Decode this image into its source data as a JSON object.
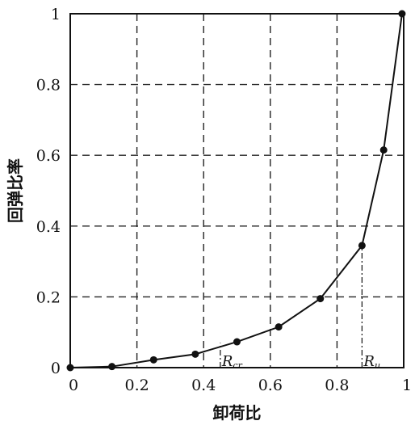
{
  "chart_data": {
    "type": "line",
    "xlabel": "卸荷比",
    "ylabel": "回弹比率",
    "xlim": [
      0,
      1
    ],
    "ylim": [
      0,
      1
    ],
    "xticks": [
      "0",
      "0.2",
      "0.4",
      "0.6",
      "0.8",
      "1"
    ],
    "yticks": [
      "0",
      "0.2",
      "0.4",
      "0.6",
      "0.8",
      "1"
    ],
    "grid": true,
    "series": [
      {
        "x": [
          0.0,
          0.125,
          0.25,
          0.375,
          0.5,
          0.625,
          0.75,
          0.875,
          0.94,
          0.995
        ],
        "y": [
          0.0,
          0.003,
          0.022,
          0.038,
          0.073,
          0.115,
          0.195,
          0.345,
          0.615,
          1.0
        ]
      }
    ],
    "annotations": [
      {
        "name": "R_cr",
        "label": "R",
        "sub": "cr",
        "x": 0.45,
        "y": 0.07
      },
      {
        "name": "R_u",
        "label": "R",
        "sub": "u",
        "x": 0.875,
        "y": 0.345
      }
    ]
  }
}
